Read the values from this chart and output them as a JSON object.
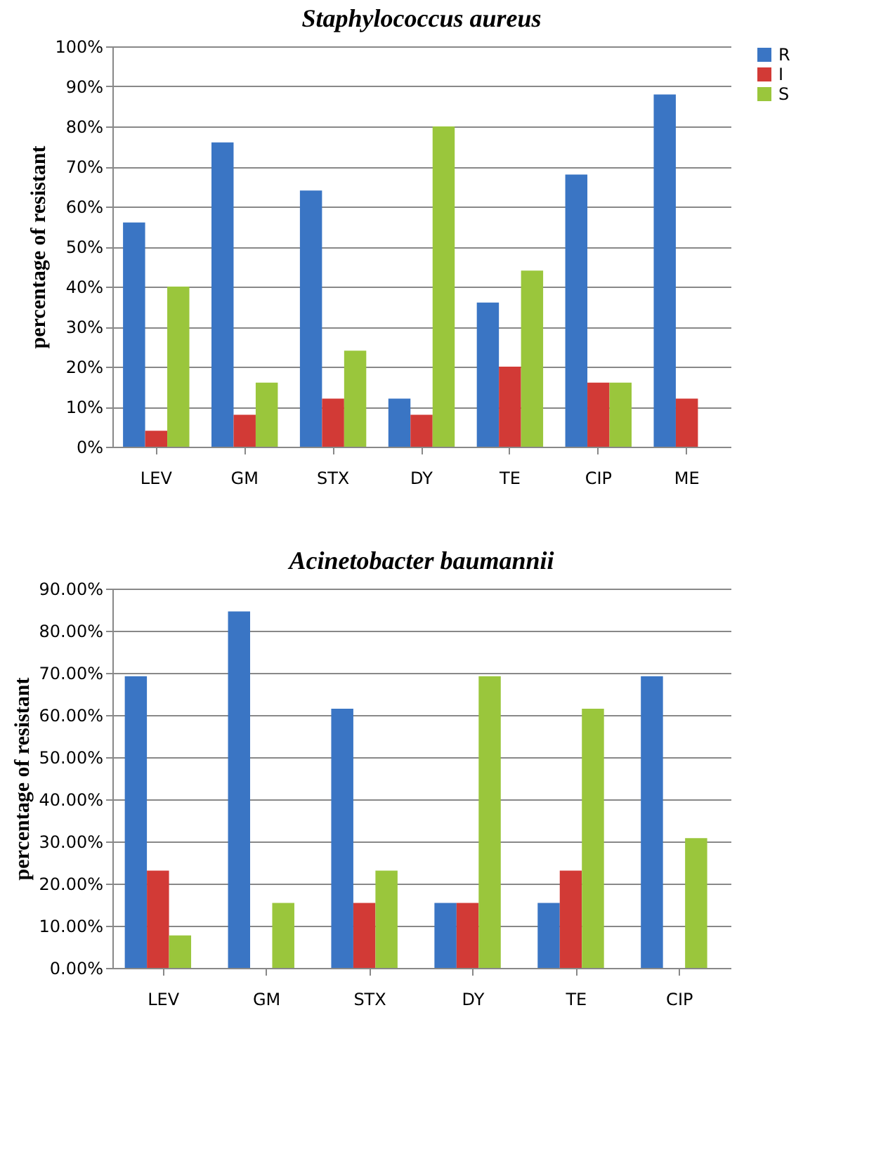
{
  "chart_data": [
    {
      "type": "bar",
      "title": "Staphylococcus aureus",
      "ylabel": "percentage of resistant",
      "categories": [
        "LEV",
        "GM",
        "STX",
        "DY",
        "TE",
        "CIP",
        "ME"
      ],
      "series": [
        {
          "name": "R",
          "color": "#3a75c4",
          "values": [
            56,
            76,
            64,
            12,
            36,
            68,
            88
          ]
        },
        {
          "name": "I",
          "color": "#d23a36",
          "values": [
            4,
            8,
            12,
            8,
            20,
            16,
            12
          ]
        },
        {
          "name": "S",
          "color": "#9ac63c",
          "values": [
            40,
            16,
            24,
            80,
            44,
            16,
            null
          ]
        }
      ],
      "ylim": [
        0,
        100
      ],
      "yticks": [
        {
          "value": 0,
          "label": "0%"
        },
        {
          "value": 10,
          "label": "10%"
        },
        {
          "value": 20,
          "label": "20%"
        },
        {
          "value": 30,
          "label": "30%"
        },
        {
          "value": 40,
          "label": "40%"
        },
        {
          "value": 50,
          "label": "50%"
        },
        {
          "value": 60,
          "label": "60%"
        },
        {
          "value": 70,
          "label": "70%"
        },
        {
          "value": 80,
          "label": "80%"
        },
        {
          "value": 90,
          "label": "90%"
        },
        {
          "value": 100,
          "label": "100%"
        }
      ],
      "grid": "y",
      "legend": "right"
    },
    {
      "type": "bar",
      "title": "Acinetobacter baumannii",
      "ylabel": "percentage of resistant",
      "categories": [
        "LEV",
        "GM",
        "STX",
        "DY",
        "TE",
        "CIP"
      ],
      "series": [
        {
          "name": "R",
          "color": "#3a75c4",
          "values": [
            69.2,
            84.6,
            61.5,
            15.4,
            15.4,
            69.2
          ]
        },
        {
          "name": "I",
          "color": "#d23a36",
          "values": [
            23.1,
            null,
            15.4,
            15.4,
            23.1,
            null
          ]
        },
        {
          "name": "S",
          "color": "#9ac63c",
          "values": [
            7.7,
            15.4,
            23.1,
            69.2,
            61.5,
            30.8
          ]
        }
      ],
      "ylim": [
        0,
        90
      ],
      "yticks": [
        {
          "value": 0,
          "label": "0.00%"
        },
        {
          "value": 10,
          "label": "10.00%"
        },
        {
          "value": 20,
          "label": "20.00%"
        },
        {
          "value": 30,
          "label": "30.00%"
        },
        {
          "value": 40,
          "label": "40.00%"
        },
        {
          "value": 50,
          "label": "50.00%"
        },
        {
          "value": 60,
          "label": "60.00%"
        },
        {
          "value": 70,
          "label": "70.00%"
        },
        {
          "value": 80,
          "label": "80.00%"
        },
        {
          "value": 90,
          "label": "90.00%"
        }
      ],
      "grid": "y",
      "legend": "right"
    }
  ]
}
